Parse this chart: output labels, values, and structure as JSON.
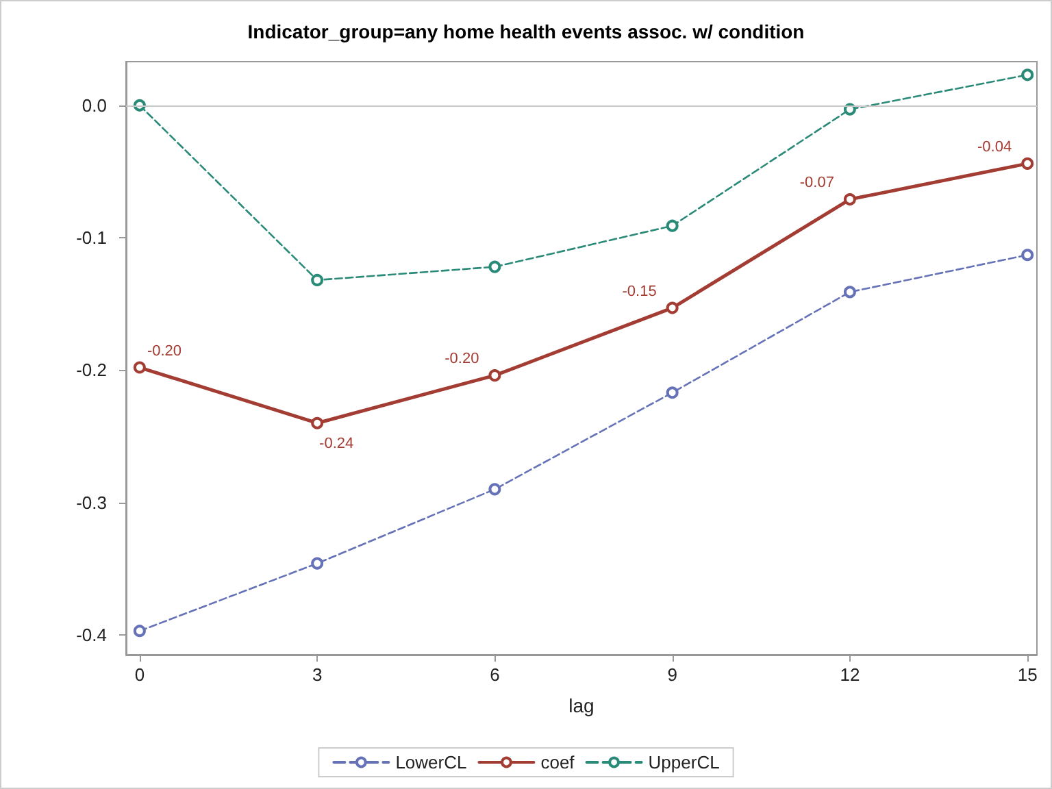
{
  "chart_data": {
    "type": "line",
    "title": "Indicator_group=any home health events assoc. w/ condition",
    "xlabel": "lag",
    "x": [
      0,
      3,
      6,
      9,
      12,
      15
    ],
    "series": [
      {
        "name": "LowerCL",
        "color": "#6672b8",
        "line_style": "dashed",
        "values": [
          -0.397,
          -0.346,
          -0.29,
          -0.217,
          -0.141,
          -0.113
        ]
      },
      {
        "name": "coef",
        "color": "#a33c32",
        "line_style": "solid",
        "values": [
          -0.198,
          -0.24,
          -0.204,
          -0.153,
          -0.071,
          -0.044
        ],
        "value_labels": [
          "-0.20",
          "-0.24",
          "-0.20",
          "-0.15",
          "-0.07",
          "-0.04"
        ]
      },
      {
        "name": "UpperCL",
        "color": "#2a8a78",
        "line_style": "dashed",
        "values": [
          0,
          -0.132,
          -0.122,
          -0.091,
          -0.003,
          0.023
        ]
      }
    ],
    "xlim": [
      -0.23,
      15.16
    ],
    "xticks": [
      0,
      3,
      6,
      9,
      12,
      15
    ],
    "ylim": [
      -0.415,
      0.033
    ],
    "yticks": [
      -0.4,
      -0.3,
      -0.2,
      -0.1,
      {
        "value": 0,
        "label": "0.0"
      }
    ],
    "ref_lines": [
      {
        "axis": "y",
        "value": 0,
        "color": "#c8c8c8"
      }
    ],
    "grid": false,
    "legend": "bottom",
    "marker": "circle"
  }
}
